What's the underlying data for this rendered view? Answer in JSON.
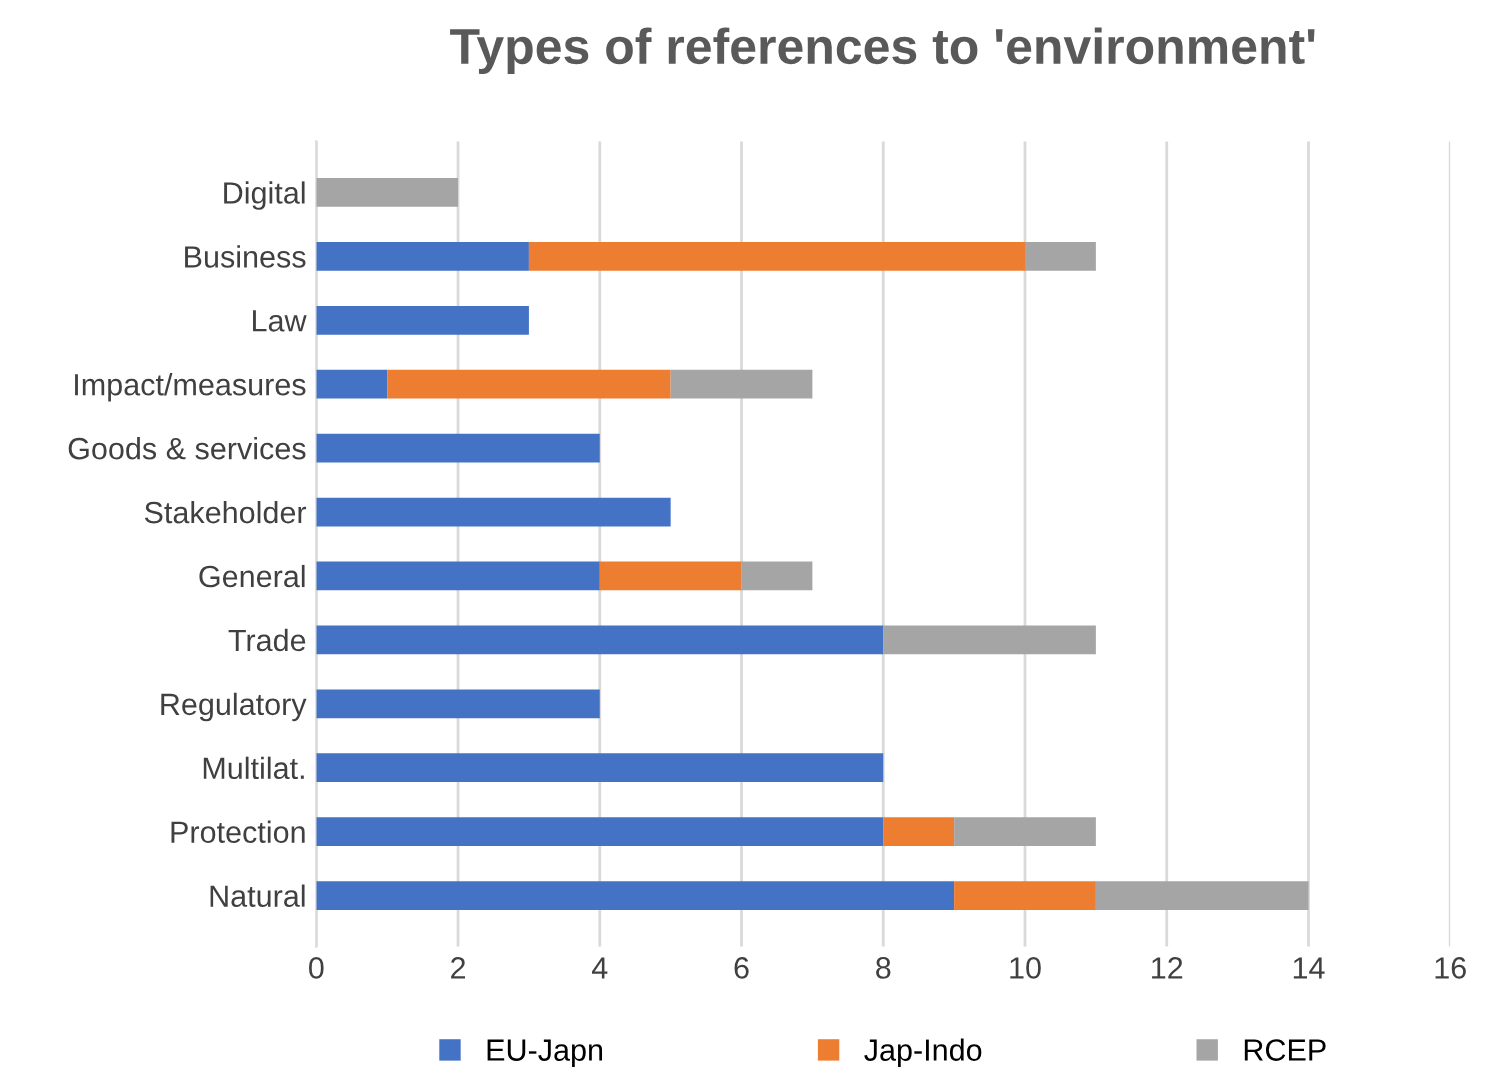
{
  "chart_data": {
    "type": "bar",
    "orientation": "horizontal",
    "stacked": true,
    "title": "Types of references to 'environment'",
    "categories": [
      "Digital",
      "Business",
      "Law",
      "Impact/measures",
      "Goods & services",
      "Stakeholder",
      "General",
      "Trade",
      "Regulatory",
      "Multilat.",
      "Protection",
      "Natural"
    ],
    "series": [
      {
        "name": "EU-Japn",
        "color": "#4472c4",
        "values": [
          0,
          3,
          3,
          1,
          4,
          5,
          4,
          8,
          4,
          8,
          8,
          9
        ]
      },
      {
        "name": "Jap-Indo",
        "color": "#ed7d31",
        "values": [
          0,
          7,
          0,
          4,
          0,
          0,
          2,
          0,
          0,
          0,
          1,
          2
        ]
      },
      {
        "name": "RCEP",
        "color": "#a5a5a5",
        "values": [
          2,
          1,
          0,
          2,
          0,
          0,
          1,
          3,
          0,
          0,
          2,
          3
        ]
      }
    ],
    "xlim": [
      0,
      16
    ],
    "xticks": [
      0,
      2,
      4,
      6,
      8,
      10,
      12,
      14,
      16
    ],
    "grid": "x",
    "legend": "bottom"
  }
}
